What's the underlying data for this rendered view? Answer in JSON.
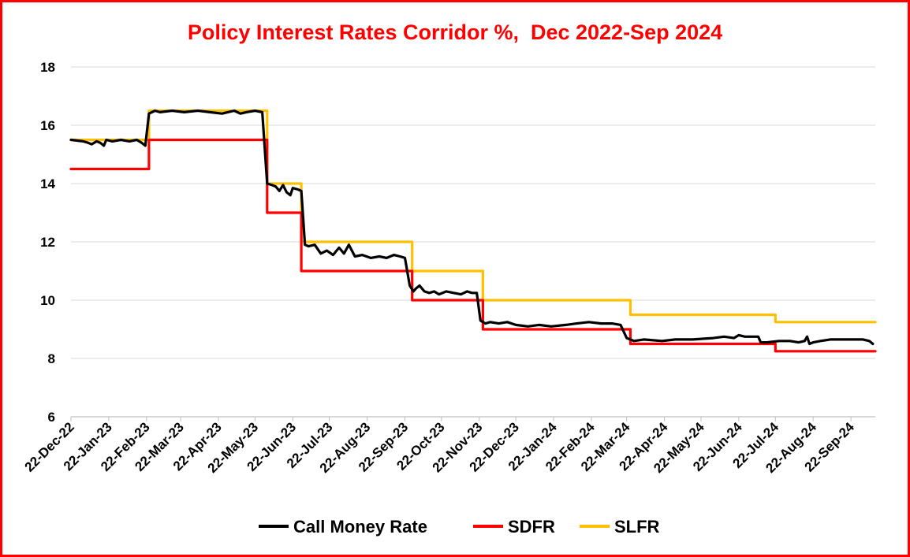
{
  "chart_data": {
    "type": "line",
    "title": "Policy Interest Rates Corridor %,  Dec 2022-Sep 2024",
    "xlabel": "",
    "ylabel": "",
    "x_range": [
      "2022-12-22",
      "2024-10-12"
    ],
    "ylim": [
      6,
      18
    ],
    "y_ticks": [
      6,
      8,
      10,
      12,
      14,
      16,
      18
    ],
    "x_tick_labels": [
      {
        "date": "2022-12-22",
        "label": "22-Dec-22"
      },
      {
        "date": "2023-01-22",
        "label": "22-Jan-23"
      },
      {
        "date": "2023-02-22",
        "label": "22-Feb-23"
      },
      {
        "date": "2023-03-22",
        "label": "22-Mar-23"
      },
      {
        "date": "2023-04-22",
        "label": "22-Apr-23"
      },
      {
        "date": "2023-05-22",
        "label": "22-May-23"
      },
      {
        "date": "2023-06-22",
        "label": "22-Jun-23"
      },
      {
        "date": "2023-07-22",
        "label": "22-Jul-23"
      },
      {
        "date": "2023-08-22",
        "label": "22-Aug-23"
      },
      {
        "date": "2023-09-22",
        "label": "22-Sep-23"
      },
      {
        "date": "2023-10-22",
        "label": "22-Oct-23"
      },
      {
        "date": "2023-11-22",
        "label": "22-Nov-23"
      },
      {
        "date": "2023-12-22",
        "label": "22-Dec-23"
      },
      {
        "date": "2024-01-22",
        "label": "22-Jan-24"
      },
      {
        "date": "2024-02-22",
        "label": "22-Feb-24"
      },
      {
        "date": "2024-03-22",
        "label": "22-Mar-24"
      },
      {
        "date": "2024-04-22",
        "label": "22-Apr-24"
      },
      {
        "date": "2024-05-22",
        "label": "22-May-24"
      },
      {
        "date": "2024-06-22",
        "label": "22-Jun-24"
      },
      {
        "date": "2024-07-22",
        "label": "22-Jul-24"
      },
      {
        "date": "2024-08-22",
        "label": "22-Aug-24"
      },
      {
        "date": "2024-09-22",
        "label": "22-Sep-24"
      }
    ],
    "grid": true,
    "legend": "bottom",
    "series": [
      {
        "name": "Call Money Rate",
        "color": "#000000",
        "x": [
          "2022-12-22",
          "2023-01-01",
          "2023-01-05",
          "2023-01-08",
          "2023-01-12",
          "2023-01-15",
          "2023-01-18",
          "2023-01-20",
          "2023-01-25",
          "2023-02-01",
          "2023-02-08",
          "2023-02-14",
          "2023-02-18",
          "2023-02-21",
          "2023-02-24",
          "2023-03-01",
          "2023-03-05",
          "2023-03-15",
          "2023-03-25",
          "2023-04-05",
          "2023-04-15",
          "2023-04-25",
          "2023-05-05",
          "2023-05-10",
          "2023-05-15",
          "2023-05-22",
          "2023-05-28",
          "2023-06-01",
          "2023-06-05",
          "2023-06-08",
          "2023-06-11",
          "2023-06-14",
          "2023-06-17",
          "2023-06-20",
          "2023-06-22",
          "2023-06-26",
          "2023-06-29",
          "2023-07-02",
          "2023-07-05",
          "2023-07-10",
          "2023-07-15",
          "2023-07-20",
          "2023-07-25",
          "2023-07-30",
          "2023-08-03",
          "2023-08-07",
          "2023-08-12",
          "2023-08-18",
          "2023-08-25",
          "2023-09-01",
          "2023-09-07",
          "2023-09-13",
          "2023-09-18",
          "2023-09-22",
          "2023-09-26",
          "2023-09-29",
          "2023-10-01",
          "2023-10-04",
          "2023-10-08",
          "2023-10-12",
          "2023-10-16",
          "2023-10-20",
          "2023-10-26",
          "2023-11-01",
          "2023-11-07",
          "2023-11-12",
          "2023-11-16",
          "2023-11-20",
          "2023-11-23",
          "2023-11-25",
          "2023-11-27",
          "2023-12-01",
          "2023-12-08",
          "2023-12-15",
          "2023-12-22",
          "2024-01-01",
          "2024-01-10",
          "2024-01-20",
          "2024-02-01",
          "2024-02-10",
          "2024-02-20",
          "2024-03-01",
          "2024-03-10",
          "2024-03-17",
          "2024-03-22",
          "2024-03-25",
          "2024-03-28",
          "2024-04-05",
          "2024-04-20",
          "2024-05-01",
          "2024-05-15",
          "2024-06-01",
          "2024-06-10",
          "2024-06-18",
          "2024-06-22",
          "2024-06-27",
          "2024-07-04",
          "2024-07-08",
          "2024-07-10",
          "2024-07-15",
          "2024-07-25",
          "2024-08-03",
          "2024-08-10",
          "2024-08-15",
          "2024-08-17",
          "2024-08-19",
          "2024-08-22",
          "2024-08-28",
          "2024-09-05",
          "2024-09-15",
          "2024-09-25",
          "2024-10-02",
          "2024-10-07",
          "2024-10-10"
        ],
        "values": [
          15.5,
          15.45,
          15.4,
          15.35,
          15.45,
          15.4,
          15.3,
          15.5,
          15.45,
          15.5,
          15.45,
          15.5,
          15.4,
          15.3,
          16.4,
          16.5,
          16.45,
          16.5,
          16.45,
          16.5,
          16.45,
          16.4,
          16.5,
          16.4,
          16.45,
          16.5,
          16.45,
          14.0,
          13.95,
          13.9,
          13.75,
          13.95,
          13.7,
          13.6,
          13.85,
          13.8,
          13.75,
          11.9,
          11.85,
          11.9,
          11.6,
          11.7,
          11.55,
          11.8,
          11.6,
          11.9,
          11.5,
          11.55,
          11.45,
          11.5,
          11.45,
          11.55,
          11.5,
          11.45,
          10.5,
          10.3,
          10.4,
          10.5,
          10.3,
          10.25,
          10.3,
          10.2,
          10.3,
          10.25,
          10.2,
          10.3,
          10.25,
          10.25,
          9.3,
          9.25,
          9.2,
          9.25,
          9.2,
          9.25,
          9.15,
          9.1,
          9.15,
          9.1,
          9.15,
          9.2,
          9.25,
          9.2,
          9.2,
          9.15,
          8.7,
          8.65,
          8.6,
          8.65,
          8.6,
          8.65,
          8.65,
          8.7,
          8.75,
          8.7,
          8.8,
          8.75,
          8.75,
          8.75,
          8.55,
          8.55,
          8.6,
          8.6,
          8.55,
          8.6,
          8.75,
          8.5,
          8.55,
          8.6,
          8.65,
          8.65,
          8.65,
          8.65,
          8.6,
          8.5
        ]
      },
      {
        "name": "SDFR",
        "color": "#ff0000",
        "x": [
          "2022-12-22",
          "2023-02-24",
          "2023-02-24",
          "2023-06-01",
          "2023-06-01",
          "2023-06-29",
          "2023-06-29",
          "2023-09-28",
          "2023-09-28",
          "2023-11-25",
          "2023-11-25",
          "2024-03-25",
          "2024-03-25",
          "2024-07-22",
          "2024-07-22",
          "2024-10-12"
        ],
        "values": [
          14.5,
          14.5,
          15.5,
          15.5,
          13.0,
          13.0,
          11.0,
          11.0,
          10.0,
          10.0,
          9.0,
          9.0,
          8.5,
          8.5,
          8.25,
          8.25
        ]
      },
      {
        "name": "SLFR",
        "color": "#ffc000",
        "x": [
          "2022-12-22",
          "2023-02-24",
          "2023-02-24",
          "2023-06-01",
          "2023-06-01",
          "2023-06-29",
          "2023-06-29",
          "2023-09-28",
          "2023-09-28",
          "2023-11-25",
          "2023-11-25",
          "2024-03-25",
          "2024-03-25",
          "2024-07-22",
          "2024-07-22",
          "2024-10-12"
        ],
        "values": [
          15.5,
          15.5,
          16.5,
          16.5,
          14.0,
          14.0,
          12.0,
          12.0,
          11.0,
          11.0,
          10.0,
          10.0,
          9.5,
          9.5,
          9.25,
          9.25
        ]
      }
    ],
    "legend_order": [
      "Call Money Rate",
      "SDFR",
      "SLFR"
    ]
  },
  "colors": {
    "title": "#ff0000",
    "frame": "#ff0000",
    "grid": "#d9d9d9",
    "axis": "#bfbfbf"
  }
}
